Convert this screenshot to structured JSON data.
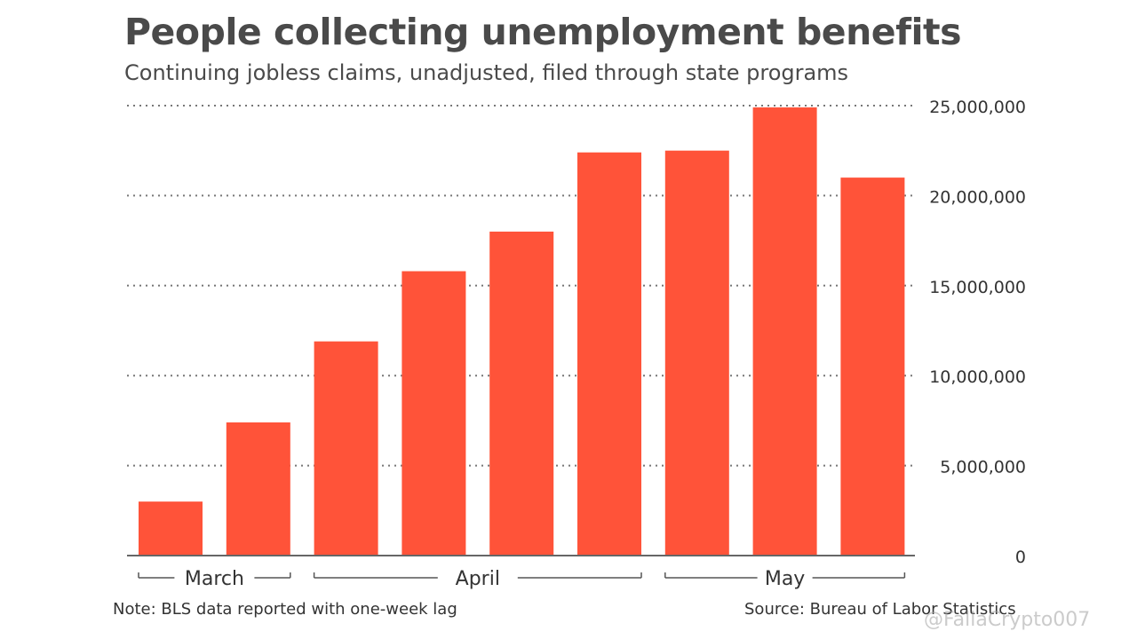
{
  "chart_data": {
    "type": "bar",
    "title": "People collecting unemployment benefits",
    "subtitle": "Continuing jobless claims, unadjusted, filed through state programs",
    "values": [
      3000000,
      7400000,
      11900000,
      15800000,
      18000000,
      22400000,
      22500000,
      24900000,
      21000000
    ],
    "ylim": [
      0,
      25000000
    ],
    "yticks": [
      0,
      5000000,
      10000000,
      15000000,
      20000000,
      25000000
    ],
    "ytick_labels": [
      "0",
      "5,000,000",
      "10,000,000",
      "15,000,000",
      "20,000,000",
      "25,000,000"
    ],
    "month_groups": [
      {
        "label": "March",
        "start": 0,
        "end": 1
      },
      {
        "label": "April",
        "start": 2,
        "end": 5
      },
      {
        "label": "May",
        "start": 6,
        "end": 8
      }
    ],
    "bar_color": "#ff5339",
    "grid": "dotted horizontal",
    "note": "Note: BLS data reported with one-week lag",
    "source": "Source: Bureau of Labor Statistics"
  },
  "watermark": "@FallaCrypto007"
}
